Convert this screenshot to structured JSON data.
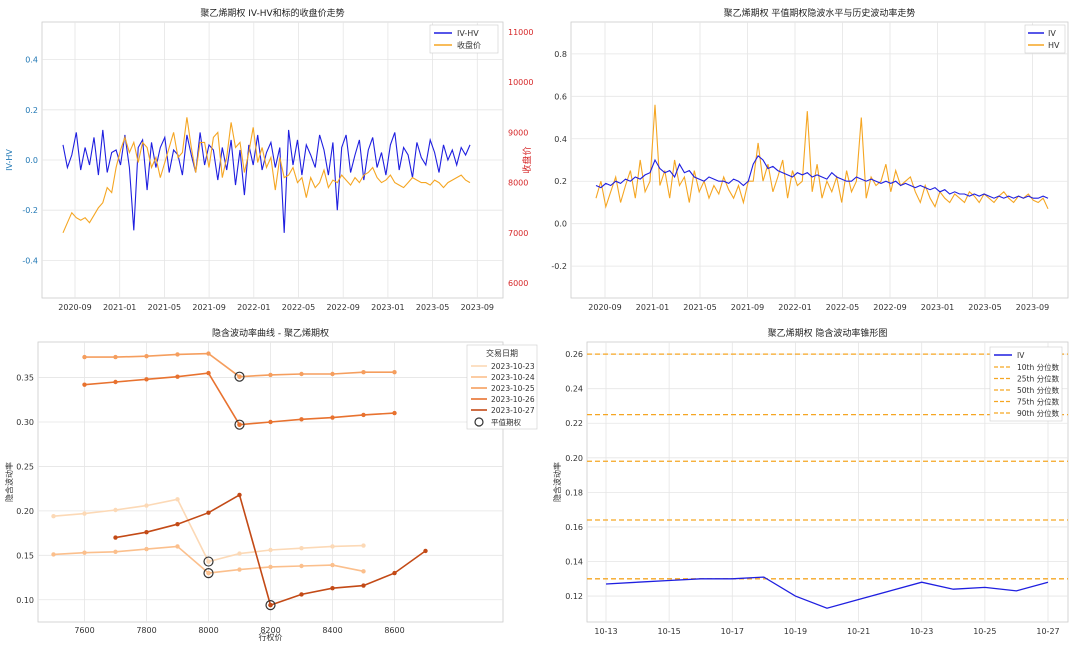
{
  "chart_data": [
    {
      "type": "line",
      "title": "聚乙烯期权 IV-HV和标的收盘价走势",
      "ylabel": "IV-HV",
      "y2label": "收盘价",
      "ylim": [
        -0.55,
        0.55
      ],
      "y2lim": [
        5700,
        11200
      ],
      "yticks": [
        "0.4",
        "0.2",
        "0.0",
        "-0.2",
        "-0.4"
      ],
      "y2ticks": [
        "11000",
        "10000",
        "9000",
        "8000",
        "7000",
        "6000"
      ],
      "xticks": [
        "2020-09",
        "2021-01",
        "2021-05",
        "2021-09",
        "2022-01",
        "2022-05",
        "2022-09",
        "2023-01",
        "2023-05",
        "2023-09"
      ],
      "legend": "top-right",
      "colors": {
        "iv_hv": "#1f1fe0",
        "close": "#f5a623"
      },
      "series": [
        {
          "name": "IV-HV",
          "axis": "left",
          "values": [
            0.06,
            -0.03,
            0.02,
            0.11,
            -0.04,
            0.05,
            -0.02,
            0.09,
            -0.06,
            0.12,
            -0.05,
            0.03,
            0.04,
            -0.02,
            0.1,
            -0.03,
            -0.28,
            0.05,
            0.08,
            -0.12,
            0.07,
            -0.03,
            0.05,
            0.09,
            -0.05,
            0.04,
            0.02,
            -0.06,
            0.1,
            0.02,
            -0.05,
            0.11,
            -0.02,
            0.06,
            0.04,
            -0.08,
            0.05,
            -0.04,
            0.08,
            -0.1,
            0.04,
            -0.14,
            0.06,
            -0.02,
            0.1,
            -0.04,
            0.03,
            0.07,
            -0.03,
            0.05,
            -0.29,
            0.12,
            -0.02,
            0.08,
            -0.06,
            0.06,
            0.02,
            -0.03,
            0.1,
            0.04,
            -0.06,
            0.07,
            -0.2,
            0.05,
            0.1,
            -0.05,
            0.02,
            0.08,
            -0.08,
            0.04,
            0.09,
            -0.03,
            0.03,
            -0.06,
            0.06,
            0.11,
            -0.04,
            0.05,
            0.02,
            -0.07,
            0.07,
            0.01,
            -0.02,
            0.08,
            0.03,
            -0.05,
            0.06,
            0.0,
            0.04,
            -0.02,
            0.05,
            0.02,
            0.06
          ]
        },
        {
          "name": "收盘价",
          "axis": "right",
          "values": [
            7000,
            7200,
            7400,
            7300,
            7250,
            7300,
            7200,
            7350,
            7500,
            7600,
            7900,
            7800,
            8300,
            8650,
            8900,
            8600,
            8800,
            8400,
            8800,
            8700,
            8300,
            8500,
            8100,
            8400,
            8700,
            9000,
            8500,
            8600,
            9300,
            8700,
            8200,
            8800,
            8800,
            8300,
            8900,
            9000,
            8100,
            8500,
            9200,
            8700,
            8800,
            8200,
            8600,
            9100,
            8400,
            8700,
            8300,
            8500,
            7850,
            8500,
            8100,
            8150,
            8300,
            8000,
            8100,
            7700,
            8100,
            7900,
            8000,
            8250,
            7900,
            8050,
            8000,
            8150,
            8050,
            7950,
            8100,
            8000,
            8150,
            8200,
            8300,
            8100,
            8000,
            8050,
            8150,
            8000,
            7950,
            7900,
            8000,
            8100,
            8050,
            8000,
            8000,
            7950,
            8050,
            8000,
            7900,
            8000,
            8050,
            8100,
            8150,
            8050,
            8000
          ]
        }
      ]
    },
    {
      "type": "line",
      "title": "聚乙烯期权 平值期权隐波水平与历史波动率走势",
      "ylim": [
        -0.35,
        0.95
      ],
      "yticks": [
        "0.8",
        "0.6",
        "0.4",
        "0.2",
        "0.0",
        "-0.2"
      ],
      "xticks": [
        "2020-09",
        "2021-01",
        "2021-05",
        "2021-09",
        "2022-01",
        "2022-05",
        "2022-09",
        "2023-01",
        "2023-05",
        "2023-09"
      ],
      "legend": "top-right",
      "colors": {
        "iv": "#1f1fe0",
        "hv": "#f5a623"
      },
      "series": [
        {
          "name": "IV",
          "values": [
            0.18,
            0.17,
            0.19,
            0.18,
            0.2,
            0.19,
            0.21,
            0.2,
            0.22,
            0.21,
            0.23,
            0.24,
            0.3,
            0.26,
            0.24,
            0.25,
            0.22,
            0.28,
            0.24,
            0.25,
            0.22,
            0.21,
            0.2,
            0.22,
            0.21,
            0.2,
            0.2,
            0.19,
            0.21,
            0.2,
            0.18,
            0.2,
            0.28,
            0.32,
            0.3,
            0.26,
            0.27,
            0.25,
            0.24,
            0.23,
            0.22,
            0.24,
            0.23,
            0.24,
            0.22,
            0.23,
            0.22,
            0.21,
            0.24,
            0.22,
            0.21,
            0.2,
            0.2,
            0.22,
            0.21,
            0.2,
            0.21,
            0.2,
            0.19,
            0.2,
            0.19,
            0.2,
            0.18,
            0.19,
            0.18,
            0.17,
            0.18,
            0.17,
            0.16,
            0.17,
            0.15,
            0.16,
            0.14,
            0.15,
            0.14,
            0.14,
            0.13,
            0.14,
            0.13,
            0.14,
            0.13,
            0.12,
            0.13,
            0.12,
            0.13,
            0.12,
            0.13,
            0.12,
            0.13,
            0.12,
            0.12,
            0.13,
            0.12
          ]
        },
        {
          "name": "HV",
          "values": [
            0.12,
            0.2,
            0.08,
            0.15,
            0.22,
            0.1,
            0.18,
            0.25,
            0.12,
            0.3,
            0.15,
            0.2,
            0.56,
            0.18,
            0.25,
            0.12,
            0.3,
            0.18,
            0.22,
            0.1,
            0.25,
            0.15,
            0.2,
            0.12,
            0.18,
            0.14,
            0.22,
            0.16,
            0.12,
            0.18,
            0.1,
            0.2,
            0.2,
            0.38,
            0.2,
            0.28,
            0.15,
            0.22,
            0.3,
            0.12,
            0.25,
            0.18,
            0.2,
            0.53,
            0.15,
            0.28,
            0.12,
            0.2,
            0.15,
            0.22,
            0.1,
            0.25,
            0.15,
            0.2,
            0.5,
            0.12,
            0.22,
            0.18,
            0.2,
            0.28,
            0.15,
            0.25,
            0.18,
            0.2,
            0.22,
            0.15,
            0.1,
            0.18,
            0.12,
            0.08,
            0.15,
            0.12,
            0.1,
            0.14,
            0.12,
            0.1,
            0.15,
            0.13,
            0.1,
            0.14,
            0.12,
            0.1,
            0.13,
            0.15,
            0.12,
            0.1,
            0.13,
            0.12,
            0.14,
            0.11,
            0.1,
            0.12,
            0.07
          ]
        }
      ]
    },
    {
      "type": "line",
      "title": "隐含波动率曲线 - 聚乙烯期权",
      "xlabel": "行权价",
      "ylabel": "隐含波动率",
      "xlim": [
        7450,
        8950
      ],
      "ylim": [
        0.075,
        0.39
      ],
      "xticks": [
        "7600",
        "7800",
        "8000",
        "8200",
        "8400",
        "8600"
      ],
      "yticks": [
        "0.35",
        "0.30",
        "0.25",
        "0.20",
        "0.15",
        "0.10"
      ],
      "legend": "top-right",
      "legend_title": "交易日期",
      "atm_label": "平值期权",
      "colors": [
        "#fcd9b6",
        "#fbbf8c",
        "#f59e5e",
        "#e8722f",
        "#c34a16"
      ],
      "series": [
        {
          "name": "2023-10-23",
          "segments": [
            {
              "x": [
                7500,
                7600,
                7700,
                7800,
                7900,
                8000
              ],
              "y": [
                0.194,
                0.197,
                0.201,
                0.206,
                0.213,
                0.143
              ]
            },
            {
              "x": [
                8000,
                8100,
                8200,
                8300,
                8400,
                8500
              ],
              "y": [
                0.143,
                0.152,
                0.156,
                0.158,
                0.16,
                0.161
              ]
            }
          ],
          "atm": [
            8000,
            0.143
          ]
        },
        {
          "name": "2023-10-24",
          "segments": [
            {
              "x": [
                7500,
                7600,
                7700,
                7800,
                7900,
                8000
              ],
              "y": [
                0.151,
                0.153,
                0.154,
                0.157,
                0.16,
                0.13
              ]
            },
            {
              "x": [
                8000,
                8100,
                8200,
                8300,
                8400,
                8500
              ],
              "y": [
                0.13,
                0.134,
                0.137,
                0.138,
                0.139,
                0.132
              ]
            }
          ],
          "atm": [
            8000,
            0.13
          ]
        },
        {
          "name": "2023-10-25",
          "segments": [
            {
              "x": [
                7600,
                7700,
                7800,
                7900,
                8000,
                8100
              ],
              "y": [
                0.373,
                0.373,
                0.374,
                0.376,
                0.377,
                0.351
              ]
            },
            {
              "x": [
                8100,
                8200,
                8300,
                8400,
                8500,
                8600
              ],
              "y": [
                0.351,
                0.353,
                0.354,
                0.354,
                0.356,
                0.356
              ]
            }
          ],
          "atm": [
            8100,
            0.351
          ]
        },
        {
          "name": "2023-10-26",
          "segments": [
            {
              "x": [
                7600,
                7700,
                7800,
                7900,
                8000,
                8100
              ],
              "y": [
                0.342,
                0.345,
                0.348,
                0.351,
                0.355,
                0.297
              ]
            },
            {
              "x": [
                8100,
                8200,
                8300,
                8400,
                8500,
                8600
              ],
              "y": [
                0.297,
                0.3,
                0.303,
                0.305,
                0.308,
                0.31
              ]
            }
          ],
          "atm": [
            8100,
            0.297
          ]
        },
        {
          "name": "2023-10-27",
          "segments": [
            {
              "x": [
                7700,
                7800,
                7900,
                8000,
                8100,
                8200
              ],
              "y": [
                0.17,
                0.176,
                0.185,
                0.198,
                0.218,
                0.094
              ]
            },
            {
              "x": [
                8200,
                8300,
                8400,
                8500,
                8600,
                8700
              ],
              "y": [
                0.094,
                0.106,
                0.113,
                0.116,
                0.13,
                0.155
              ]
            }
          ],
          "atm": [
            8200,
            0.094
          ]
        }
      ]
    },
    {
      "type": "line",
      "title": "聚乙烯期权 隐含波动率锥形图",
      "ylabel": "隐含波动率",
      "xlim": [
        0,
        14
      ],
      "ylim": [
        0.105,
        0.267
      ],
      "xticks": [
        "10-13",
        "10-15",
        "10-17",
        "10-19",
        "10-21",
        "10-23",
        "10-25",
        "10-27"
      ],
      "yticks": [
        "0.26",
        "0.24",
        "0.22",
        "0.20",
        "0.18",
        "0.16",
        "0.14",
        "0.12"
      ],
      "legend": "top-right",
      "colors": {
        "iv": "#1f1fe0",
        "pct": "#f5a623"
      },
      "series": [
        {
          "name": "IV",
          "x": [
            0,
            1,
            2,
            3,
            4,
            5,
            6,
            7,
            8,
            9,
            10,
            11,
            12,
            13,
            14
          ],
          "values": [
            0.127,
            0.128,
            0.129,
            0.13,
            0.13,
            0.131,
            0.12,
            0.113,
            0.118,
            0.123,
            0.128,
            0.124,
            0.125,
            0.123,
            0.128
          ]
        }
      ],
      "percentiles": [
        {
          "name": "10th 分位数",
          "value": 0.13
        },
        {
          "name": "25th 分位数",
          "value": 0.164
        },
        {
          "name": "50th 分位数",
          "value": 0.198
        },
        {
          "name": "75th 分位数",
          "value": 0.225
        },
        {
          "name": "90th 分位数",
          "value": 0.26
        }
      ]
    }
  ]
}
